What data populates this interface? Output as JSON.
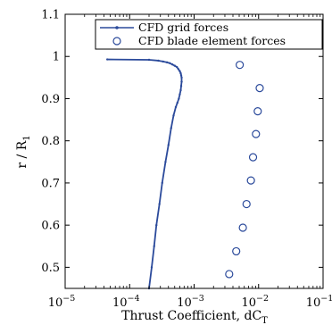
{
  "chart_data": {
    "type": "scatter",
    "xlabel": "Thrust Coefficient, dC",
    "xlabel_sub": "T",
    "ylabel": "r / R",
    "ylabel_sub": "1",
    "x_scale": "log",
    "xlim": [
      1e-05,
      0.1
    ],
    "ylim": [
      0.45,
      1.1
    ],
    "x_ticks": [
      {
        "value": 1e-05,
        "base": "10",
        "exp": "−5"
      },
      {
        "value": 0.0001,
        "base": "10",
        "exp": "−4"
      },
      {
        "value": 0.001,
        "base": "10",
        "exp": "−3"
      },
      {
        "value": 0.01,
        "base": "10",
        "exp": "−2"
      },
      {
        "value": 0.1,
        "base": "10",
        "exp": "−1"
      }
    ],
    "y_ticks": [
      {
        "value": 0.5,
        "label": "0.5"
      },
      {
        "value": 0.6,
        "label": "0.6"
      },
      {
        "value": 0.7,
        "label": "0.7"
      },
      {
        "value": 0.8,
        "label": "0.8"
      },
      {
        "value": 0.9,
        "label": "0.9"
      },
      {
        "value": 1.0,
        "label": "1"
      },
      {
        "value": 1.1,
        "label": "1.1"
      }
    ],
    "grid": false,
    "legend_position": "top-right",
    "series": [
      {
        "name": "CFD grid forces",
        "style": "line-with-dots",
        "color": "#2b4a9b",
        "x": [
          0.0002,
          0.00022,
          0.00024,
          0.00026,
          0.00029,
          0.00032,
          0.00036,
          0.0004,
          0.00044,
          0.00048,
          0.00052,
          0.00055,
          0.00058,
          0.0006,
          0.00062,
          0.00063,
          0.00064,
          0.00064,
          0.00063,
          0.00062,
          0.0006,
          0.00057,
          0.00054,
          0.0005,
          0.00046,
          0.00042,
          0.00038,
          0.00033,
          0.00028,
          0.0002,
          4.5e-05
        ],
        "y": [
          0.45,
          0.5,
          0.55,
          0.6,
          0.65,
          0.7,
          0.75,
          0.79,
          0.83,
          0.86,
          0.88,
          0.89,
          0.9,
          0.91,
          0.92,
          0.93,
          0.94,
          0.95,
          0.955,
          0.96,
          0.965,
          0.97,
          0.975,
          0.978,
          0.981,
          0.984,
          0.986,
          0.988,
          0.99,
          0.992,
          0.993
        ]
      },
      {
        "name": "CFD blade element forces",
        "style": "open-circle",
        "color": "#2b4a9b",
        "x": [
          0.0035,
          0.0045,
          0.0057,
          0.0065,
          0.0076,
          0.0082,
          0.0091,
          0.0097,
          0.0104,
          0.0051
        ],
        "y": [
          0.484,
          0.538,
          0.594,
          0.65,
          0.706,
          0.761,
          0.816,
          0.87,
          0.925,
          0.98
        ]
      }
    ]
  }
}
